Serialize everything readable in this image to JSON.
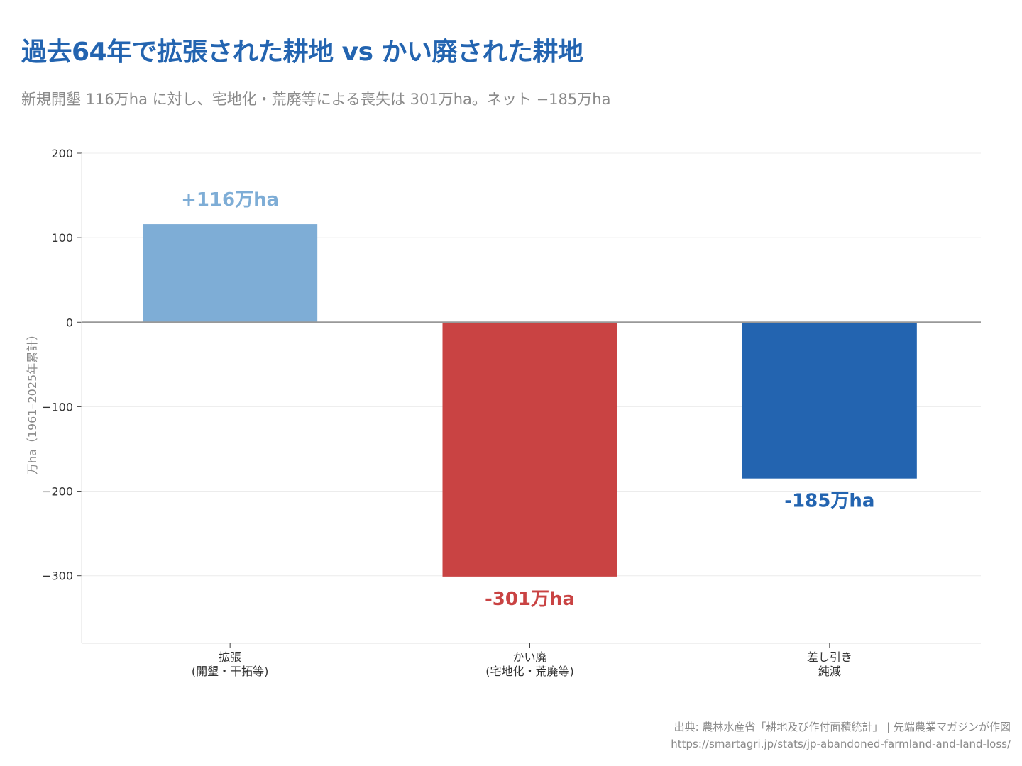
{
  "header": {
    "title": "過去64年で拡張された耕地 vs かい廃された耕地",
    "subtitle": "新規開墾 116万ha に対し、宅地化・荒廃等による喪失は 301万ha。ネット −185万ha"
  },
  "chart_data": {
    "type": "bar",
    "title": "過去64年で拡張された耕地 vs かい廃された耕地",
    "ylabel": "万ha（1961–2025年累計）",
    "ylim": [
      -380,
      200
    ],
    "yticks": [
      200,
      100,
      0,
      -100,
      -200,
      -300
    ],
    "ytick_labels": [
      "200",
      "100",
      "0",
      "−100",
      "−200",
      "−300"
    ],
    "grid": true,
    "categories": [
      [
        "拡張",
        "(開墾・干拓等)"
      ],
      [
        "かい廃",
        "(宅地化・荒廃等)"
      ],
      [
        "差し引き",
        "純減"
      ]
    ],
    "values": [
      116,
      -301,
      -185
    ],
    "data_labels": [
      "+116万ha",
      "-301万ha",
      "-185万ha"
    ],
    "colors": [
      "#7eadd6",
      "#c94343",
      "#2364b0"
    ]
  },
  "footer": {
    "source": "出典: 農林水産省「耕地及び作付面積統計」 | 先端農業マガジンが作図",
    "url": "https://smartagri.jp/stats/jp-abandoned-farmland-and-land-loss/"
  }
}
